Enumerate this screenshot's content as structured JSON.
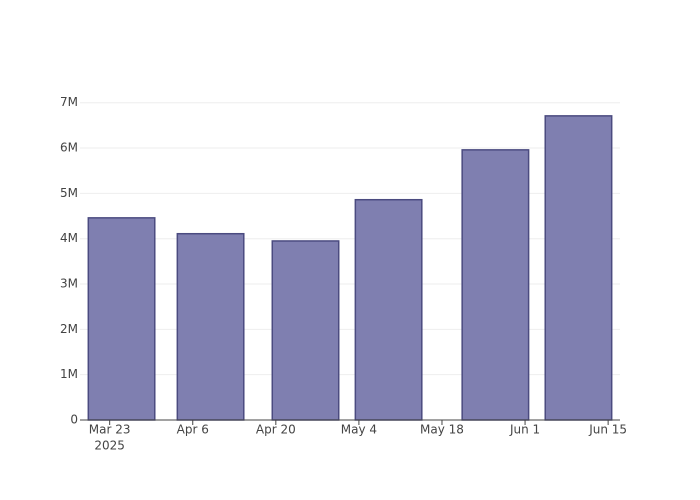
{
  "chart_data": {
    "type": "bar",
    "x": [
      "2025-03-25",
      "2025-04-09",
      "2025-04-25",
      "2025-05-09",
      "2025-05-27",
      "2025-06-10"
    ],
    "values": [
      4460000,
      4110000,
      3950000,
      4860000,
      5960000,
      6710000
    ],
    "color": "#7f7fb0",
    "edge_color": "#4b4b80",
    "xlim": [
      "2025-03-18",
      "2025-06-17"
    ],
    "xticks": [
      {
        "value": "2025-03-23",
        "label": "Mar 23",
        "sublabel": "2025"
      },
      {
        "value": "2025-04-06",
        "label": "Apr 6"
      },
      {
        "value": "2025-04-20",
        "label": "Apr 20"
      },
      {
        "value": "2025-05-04",
        "label": "May 4"
      },
      {
        "value": "2025-05-18",
        "label": "May 18"
      },
      {
        "value": "2025-06-01",
        "label": "Jun 1"
      },
      {
        "value": "2025-06-15",
        "label": "Jun 15"
      }
    ],
    "ylim": [
      0,
      7060000
    ],
    "yticks": [
      {
        "value": 0,
        "label": "0"
      },
      {
        "value": 1000000,
        "label": "1M"
      },
      {
        "value": 2000000,
        "label": "2M"
      },
      {
        "value": 3000000,
        "label": "3M"
      },
      {
        "value": 4000000,
        "label": "4M"
      },
      {
        "value": 5000000,
        "label": "5M"
      },
      {
        "value": 6000000,
        "label": "6M"
      },
      {
        "value": 7000000,
        "label": "7M"
      }
    ],
    "grid": true
  }
}
